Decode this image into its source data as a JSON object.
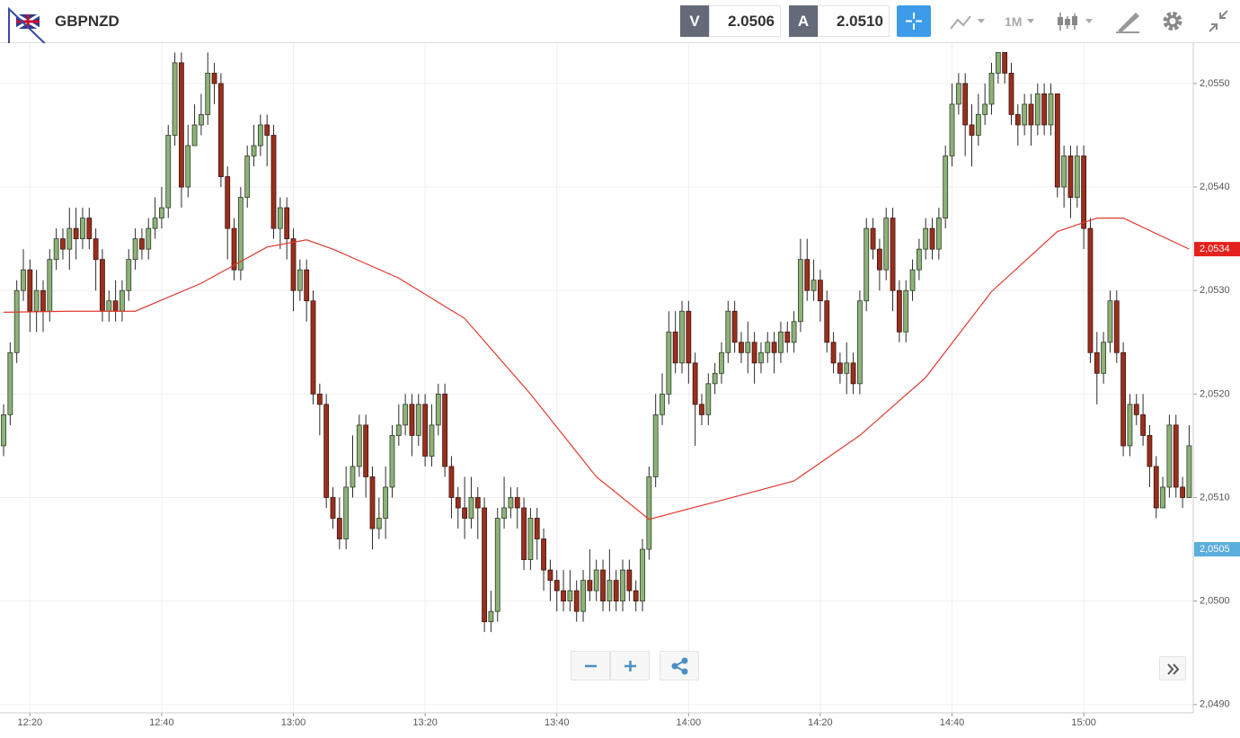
{
  "header": {
    "symbol": "GBPNZD",
    "sell_label": "V",
    "sell_price": "2.0506",
    "buy_label": "A",
    "buy_price": "2.0510",
    "timeframe": "1M"
  },
  "chart_data": {
    "type": "candlestick",
    "up_color": "#8db27a",
    "down_color": "#9a2f1e",
    "ylim": [
      2.04892,
      2.05539
    ],
    "yticks": [
      {
        "value": 2.049,
        "label": "2,0490"
      },
      {
        "value": 2.05,
        "label": "2,0500"
      },
      {
        "value": 2.051,
        "label": "2,0510"
      },
      {
        "value": 2.052,
        "label": "2,0520"
      },
      {
        "value": 2.053,
        "label": "2,0530"
      },
      {
        "value": 2.054,
        "label": "2,0540"
      },
      {
        "value": 2.055,
        "label": "2,0550"
      }
    ],
    "xticks": [
      {
        "value": 4,
        "label": "12:20"
      },
      {
        "value": 24,
        "label": "12:40"
      },
      {
        "value": 44,
        "label": "13:00"
      },
      {
        "value": 64,
        "label": "13:20"
      },
      {
        "value": 84,
        "label": "13:40"
      },
      {
        "value": 104,
        "label": "14:00"
      },
      {
        "value": 124,
        "label": "14:20"
      },
      {
        "value": 144,
        "label": "14:40"
      },
      {
        "value": 164,
        "label": "15:00"
      }
    ],
    "grid": true,
    "ohlc": [
      [
        2.0515,
        2.0519,
        2.0514,
        2.0518
      ],
      [
        2.0518,
        2.0525,
        2.0517,
        2.0524
      ],
      [
        2.0524,
        2.0531,
        2.0523,
        2.053
      ],
      [
        2.053,
        2.0534,
        2.0529,
        2.0532
      ],
      [
        2.0532,
        2.0533,
        2.0526,
        2.0528
      ],
      [
        2.0528,
        2.0532,
        2.0526,
        2.053
      ],
      [
        2.053,
        2.0531,
        2.0526,
        2.0528
      ],
      [
        2.0528,
        2.0534,
        2.0527,
        2.0533
      ],
      [
        2.0533,
        2.0536,
        2.0532,
        2.0535
      ],
      [
        2.0535,
        2.0536,
        2.0533,
        2.0534
      ],
      [
        2.0534,
        2.0538,
        2.0532,
        2.0536
      ],
      [
        2.0536,
        2.0538,
        2.0533,
        2.0535
      ],
      [
        2.0535,
        2.0538,
        2.0534,
        2.0537
      ],
      [
        2.0537,
        2.0538,
        2.0534,
        2.0535
      ],
      [
        2.0535,
        2.0536,
        2.053,
        2.0533
      ],
      [
        2.0533,
        2.0534,
        2.0527,
        2.0528
      ],
      [
        2.0528,
        2.053,
        2.0527,
        2.0529
      ],
      [
        2.0529,
        2.0531,
        2.0527,
        2.0528
      ],
      [
        2.0528,
        2.0531,
        2.0527,
        2.053
      ],
      [
        2.053,
        2.0534,
        2.0529,
        2.0533
      ],
      [
        2.0533,
        2.0536,
        2.0532,
        2.0535
      ],
      [
        2.0535,
        2.0536,
        2.0533,
        2.0534
      ],
      [
        2.0534,
        2.0537,
        2.0533,
        2.0536
      ],
      [
        2.0536,
        2.0539,
        2.0535,
        2.0537
      ],
      [
        2.0537,
        2.054,
        2.0536,
        2.0538
      ],
      [
        2.0538,
        2.0546,
        2.0537,
        2.0545
      ],
      [
        2.0545,
        2.0553,
        2.0544,
        2.0552
      ],
      [
        2.0552,
        2.0553,
        2.0538,
        2.054
      ],
      [
        2.054,
        2.0546,
        2.0539,
        2.0544
      ],
      [
        2.0544,
        2.0548,
        2.0544,
        2.0546
      ],
      [
        2.0546,
        2.0549,
        2.0545,
        2.0547
      ],
      [
        2.0547,
        2.0553,
        2.0546,
        2.0551
      ],
      [
        2.0551,
        2.0552,
        2.0548,
        2.055
      ],
      [
        2.055,
        2.0551,
        2.054,
        2.0541
      ],
      [
        2.0541,
        2.0542,
        2.0533,
        2.0536
      ],
      [
        2.0536,
        2.0537,
        2.0531,
        2.0532
      ],
      [
        2.0532,
        2.054,
        2.0531,
        2.0539
      ],
      [
        2.0539,
        2.0544,
        2.0538,
        2.0543
      ],
      [
        2.0543,
        2.0546,
        2.0542,
        2.0544
      ],
      [
        2.0544,
        2.0547,
        2.0543,
        2.0546
      ],
      [
        2.0546,
        2.0547,
        2.0542,
        2.0545
      ],
      [
        2.0545,
        2.0546,
        2.0535,
        2.0536
      ],
      [
        2.0536,
        2.0539,
        2.0534,
        2.0538
      ],
      [
        2.0538,
        2.0539,
        2.0533,
        2.0535
      ],
      [
        2.0535,
        2.0536,
        2.0528,
        2.053
      ],
      [
        2.053,
        2.0533,
        2.0529,
        2.0532
      ],
      [
        2.0532,
        2.0533,
        2.0527,
        2.0529
      ],
      [
        2.0529,
        2.053,
        2.0519,
        2.052
      ],
      [
        2.052,
        2.0521,
        2.0516,
        2.0519
      ],
      [
        2.0519,
        2.052,
        2.0509,
        2.051
      ],
      [
        2.051,
        2.0511,
        2.0507,
        2.0508
      ],
      [
        2.0508,
        2.051,
        2.0505,
        2.0506
      ],
      [
        2.0506,
        2.0513,
        2.0505,
        2.0511
      ],
      [
        2.0511,
        2.0516,
        2.051,
        2.0513
      ],
      [
        2.0513,
        2.0518,
        2.0512,
        2.0517
      ],
      [
        2.0517,
        2.0518,
        2.051,
        2.0512
      ],
      [
        2.0512,
        2.0513,
        2.0505,
        2.0507
      ],
      [
        2.0507,
        2.051,
        2.0506,
        2.0508
      ],
      [
        2.0508,
        2.0513,
        2.0506,
        2.0511
      ],
      [
        2.0511,
        2.0517,
        2.051,
        2.0516
      ],
      [
        2.0516,
        2.0519,
        2.0515,
        2.0517
      ],
      [
        2.0517,
        2.052,
        2.0516,
        2.0519
      ],
      [
        2.0519,
        2.052,
        2.0514,
        2.0516
      ],
      [
        2.0516,
        2.052,
        2.0515,
        2.0519
      ],
      [
        2.0519,
        2.052,
        2.0513,
        2.0514
      ],
      [
        2.0514,
        2.0519,
        2.0513,
        2.0517
      ],
      [
        2.0517,
        2.0521,
        2.0516,
        2.052
      ],
      [
        2.052,
        2.0521,
        2.0512,
        2.0513
      ],
      [
        2.0513,
        2.0514,
        2.0508,
        2.051
      ],
      [
        2.051,
        2.0511,
        2.0507,
        2.0509
      ],
      [
        2.0509,
        2.0512,
        2.0506,
        2.0508
      ],
      [
        2.0508,
        2.0512,
        2.0507,
        2.051
      ],
      [
        2.051,
        2.0511,
        2.0506,
        2.0509
      ],
      [
        2.0509,
        2.051,
        2.0497,
        2.0498
      ],
      [
        2.0498,
        2.0501,
        2.0497,
        2.0499
      ],
      [
        2.0499,
        2.0509,
        2.0498,
        2.0508
      ],
      [
        2.0508,
        2.0512,
        2.0507,
        2.0509
      ],
      [
        2.0509,
        2.0511,
        2.0508,
        2.051
      ],
      [
        2.051,
        2.0511,
        2.0507,
        2.0509
      ],
      [
        2.0509,
        2.051,
        2.0503,
        2.0504
      ],
      [
        2.0504,
        2.0509,
        2.0503,
        2.0508
      ],
      [
        2.0508,
        2.0509,
        2.0504,
        2.0506
      ],
      [
        2.0506,
        2.0507,
        2.0501,
        2.0503
      ],
      [
        2.0503,
        2.0504,
        2.05,
        2.0502
      ],
      [
        2.0502,
        2.0503,
        2.0499,
        2.0501
      ],
      [
        2.0501,
        2.0503,
        2.0499,
        2.05
      ],
      [
        2.05,
        2.0503,
        2.0499,
        2.0501
      ],
      [
        2.0501,
        2.0502,
        2.0498,
        2.0499
      ],
      [
        2.0499,
        2.0503,
        2.0498,
        2.0502
      ],
      [
        2.0502,
        2.0505,
        2.05,
        2.0501
      ],
      [
        2.0501,
        2.0504,
        2.05,
        2.0503
      ],
      [
        2.0503,
        2.0504,
        2.0499,
        2.05
      ],
      [
        2.05,
        2.0505,
        2.0499,
        2.0502
      ],
      [
        2.0502,
        2.0503,
        2.0499,
        2.05
      ],
      [
        2.05,
        2.0504,
        2.0499,
        2.0503
      ],
      [
        2.0503,
        2.0504,
        2.05,
        2.0501
      ],
      [
        2.0501,
        2.0502,
        2.0499,
        2.05
      ],
      [
        2.05,
        2.0506,
        2.0499,
        2.0505
      ],
      [
        2.0505,
        2.0513,
        2.0504,
        2.0512
      ],
      [
        2.0512,
        2.052,
        2.0511,
        2.0518
      ],
      [
        2.0518,
        2.0522,
        2.0517,
        2.052
      ],
      [
        2.052,
        2.0528,
        2.0519,
        2.0526
      ],
      [
        2.0526,
        2.0528,
        2.0522,
        2.0523
      ],
      [
        2.0523,
        2.0529,
        2.0522,
        2.0528
      ],
      [
        2.0528,
        2.0529,
        2.0521,
        2.0523
      ],
      [
        2.0523,
        2.0524,
        2.0515,
        2.0519
      ],
      [
        2.0519,
        2.052,
        2.0517,
        2.0518
      ],
      [
        2.0518,
        2.0522,
        2.0517,
        2.0521
      ],
      [
        2.0521,
        2.0523,
        2.052,
        2.0522
      ],
      [
        2.0522,
        2.0525,
        2.0521,
        2.0524
      ],
      [
        2.0524,
        2.0529,
        2.0523,
        2.0528
      ],
      [
        2.0528,
        2.0529,
        2.0524,
        2.0525
      ],
      [
        2.0525,
        2.0526,
        2.0523,
        2.0524
      ],
      [
        2.0524,
        2.0527,
        2.0522,
        2.0525
      ],
      [
        2.0525,
        2.0526,
        2.0521,
        2.0523
      ],
      [
        2.0523,
        2.0525,
        2.0522,
        2.0524
      ],
      [
        2.0524,
        2.0526,
        2.0523,
        2.0525
      ],
      [
        2.0525,
        2.0526,
        2.0522,
        2.0524
      ],
      [
        2.0524,
        2.0527,
        2.0523,
        2.0526
      ],
      [
        2.0526,
        2.0527,
        2.0524,
        2.0525
      ],
      [
        2.0525,
        2.0528,
        2.0524,
        2.0527
      ],
      [
        2.0527,
        2.0535,
        2.0526,
        2.0533
      ],
      [
        2.0533,
        2.0535,
        2.0529,
        2.053
      ],
      [
        2.053,
        2.0533,
        2.0529,
        2.0531
      ],
      [
        2.0531,
        2.0532,
        2.0527,
        2.0529
      ],
      [
        2.0529,
        2.053,
        2.0524,
        2.0525
      ],
      [
        2.0525,
        2.0526,
        2.0522,
        2.0523
      ],
      [
        2.0523,
        2.0524,
        2.0521,
        2.0522
      ],
      [
        2.0522,
        2.0525,
        2.052,
        2.0523
      ],
      [
        2.0523,
        2.0524,
        2.052,
        2.0521
      ],
      [
        2.0521,
        2.053,
        2.052,
        2.0529
      ],
      [
        2.0529,
        2.0537,
        2.0528,
        2.0536
      ],
      [
        2.0536,
        2.0537,
        2.0533,
        2.0534
      ],
      [
        2.0534,
        2.0535,
        2.053,
        2.0532
      ],
      [
        2.0532,
        2.0538,
        2.0531,
        2.0537
      ],
      [
        2.0537,
        2.0538,
        2.0528,
        2.053
      ],
      [
        2.053,
        2.0531,
        2.0525,
        2.0526
      ],
      [
        2.0526,
        2.0531,
        2.0525,
        2.053
      ],
      [
        2.053,
        2.0533,
        2.0529,
        2.0532
      ],
      [
        2.0532,
        2.0535,
        2.0531,
        2.0534
      ],
      [
        2.0534,
        2.0537,
        2.0533,
        2.0536
      ],
      [
        2.0536,
        2.0537,
        2.0533,
        2.0534
      ],
      [
        2.0534,
        2.0538,
        2.0533,
        2.0537
      ],
      [
        2.0537,
        2.0544,
        2.0536,
        2.0543
      ],
      [
        2.0543,
        2.055,
        2.0542,
        2.0548
      ],
      [
        2.0548,
        2.0551,
        2.0547,
        2.055
      ],
      [
        2.055,
        2.0551,
        2.0543,
        2.0546
      ],
      [
        2.0546,
        2.0548,
        2.0542,
        2.0545
      ],
      [
        2.0545,
        2.0549,
        2.0544,
        2.0547
      ],
      [
        2.0547,
        2.055,
        2.0546,
        2.0548
      ],
      [
        2.0548,
        2.0552,
        2.0547,
        2.0551
      ],
      [
        2.0551,
        2.0553,
        2.055,
        2.0553
      ],
      [
        2.0553,
        2.0553,
        2.055,
        2.0551
      ],
      [
        2.0551,
        2.0552,
        2.0546,
        2.0547
      ],
      [
        2.0547,
        2.0548,
        2.0544,
        2.0546
      ],
      [
        2.0546,
        2.0549,
        2.0545,
        2.0548
      ],
      [
        2.0548,
        2.0549,
        2.0544,
        2.0546
      ],
      [
        2.0546,
        2.055,
        2.0545,
        2.0549
      ],
      [
        2.0549,
        2.055,
        2.0545,
        2.0546
      ],
      [
        2.0546,
        2.055,
        2.0545,
        2.0549
      ],
      [
        2.0549,
        2.0549,
        2.0539,
        2.054
      ],
      [
        2.054,
        2.0544,
        2.0538,
        2.0543
      ],
      [
        2.0543,
        2.0544,
        2.0537,
        2.0539
      ],
      [
        2.0539,
        2.0544,
        2.0538,
        2.0543
      ],
      [
        2.0543,
        2.0544,
        2.0534,
        2.0536
      ],
      [
        2.0536,
        2.0537,
        2.0523,
        2.0524
      ],
      [
        2.0524,
        2.0526,
        2.0519,
        2.0522
      ],
      [
        2.0522,
        2.0526,
        2.0521,
        2.0525
      ],
      [
        2.0525,
        2.053,
        2.0524,
        2.0529
      ],
      [
        2.0529,
        2.053,
        2.0523,
        2.0524
      ],
      [
        2.0524,
        2.0525,
        2.0514,
        2.0515
      ],
      [
        2.0515,
        2.052,
        2.0514,
        2.0519
      ],
      [
        2.0519,
        2.052,
        2.0517,
        2.0518
      ],
      [
        2.0518,
        2.052,
        2.0515,
        2.0516
      ],
      [
        2.0516,
        2.0517,
        2.0511,
        2.0513
      ],
      [
        2.0513,
        2.0514,
        2.0508,
        2.0509
      ],
      [
        2.0509,
        2.0512,
        2.0509,
        2.0511
      ],
      [
        2.0511,
        2.0518,
        2.051,
        2.0517
      ],
      [
        2.0517,
        2.0518,
        2.051,
        2.0511
      ],
      [
        2.0511,
        2.0512,
        2.0509,
        2.051
      ],
      [
        2.051,
        2.0517,
        2.051,
        2.0515
      ]
    ],
    "ma": {
      "color": "#e03a2f",
      "x": [
        0,
        10,
        20,
        30,
        40,
        46,
        50,
        60,
        70,
        80,
        90,
        98,
        110,
        120,
        130,
        140,
        150,
        160,
        166,
        170,
        180
      ],
      "values": [
        2.05279,
        2.0528,
        2.0528,
        2.05307,
        2.05342,
        2.05349,
        2.0534,
        2.05312,
        2.05273,
        2.052,
        2.0512,
        2.05079,
        2.05099,
        2.05116,
        2.0516,
        2.05216,
        2.05299,
        2.05357,
        2.0537,
        2.0537,
        2.0534
      ]
    },
    "price_labels": [
      {
        "value": 2.0534,
        "label": "2,0534",
        "color": "#e3201b"
      },
      {
        "value": 2.0505,
        "label": "2,0505",
        "color": "#5aaedc"
      }
    ]
  }
}
